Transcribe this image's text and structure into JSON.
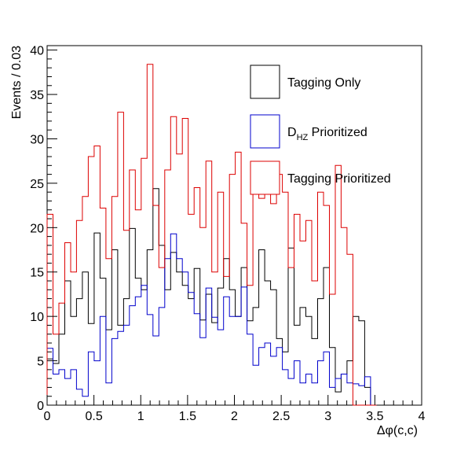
{
  "chart_data": {
    "type": "histogram-step",
    "xlabel": "Δφ(c,c)",
    "ylabel": "Events / 0.03",
    "xlim": [
      0,
      4
    ],
    "ylim": [
      0,
      40.5
    ],
    "bin_width": 0.0628,
    "x_ticks": [
      0,
      0.5,
      1,
      1.5,
      2,
      2.5,
      3,
      3.5,
      4
    ],
    "x_tick_labels": [
      "0",
      "0.5",
      "1",
      "1.5",
      "2",
      "2.5",
      "3",
      "3.5",
      "4"
    ],
    "y_ticks": [
      0,
      5,
      10,
      15,
      20,
      25,
      30,
      35,
      40
    ],
    "y_tick_labels": [
      "0",
      "5",
      "10",
      "15",
      "20",
      "25",
      "30",
      "35",
      "40"
    ],
    "legend_position": "top-right",
    "series": [
      {
        "name": "Tagging Only",
        "legend_main": "Tagging Only",
        "legend_sub": "",
        "legend_tail": "",
        "color": "#000000",
        "values": [
          5.2,
          4.7,
          8.0,
          14.0,
          10.0,
          12.0,
          15.0,
          9.2,
          19.4,
          14.3,
          8.5,
          17.5,
          9.0,
          12.0,
          19.9,
          14.3,
          13.0,
          17.5,
          24.4,
          18.0,
          13.0,
          17.2,
          15.0,
          13.5,
          12.0,
          15.4,
          9.6,
          12.5,
          9.3,
          13.2,
          16.5,
          13.0,
          10.0,
          15.5,
          9.5,
          11.0,
          17.5,
          14.0,
          13.0,
          7.5,
          6.0,
          17.7,
          9.0,
          11.0,
          10.0,
          7.5,
          12.0,
          15.5,
          6.5,
          1.5,
          3.5,
          5.0,
          10.0,
          9.5,
          2.0,
          0
        ]
      },
      {
        "name": "D_HZ Prioritized",
        "legend_main": "D",
        "legend_sub": "HZ",
        "legend_tail": " Prioritized",
        "color": "#0000cc",
        "values": [
          6.4,
          3.5,
          4.0,
          3.0,
          4.0,
          1.8,
          1.0,
          6.0,
          5.0,
          10.0,
          2.5,
          7.5,
          8.3,
          9.0,
          11.2,
          12.2,
          13.5,
          10.2,
          7.8,
          11.0,
          16.5,
          19.3,
          16.5,
          15.0,
          12.7,
          10.3,
          7.6,
          13.2,
          9.9,
          8.5,
          12.2,
          10.0,
          10.0,
          13.3,
          8.0,
          4.5,
          6.5,
          7.0,
          5.5,
          6.5,
          4.0,
          3.0,
          5.0,
          2.5,
          3.5,
          2.5,
          5.0,
          6.0,
          2.0,
          3.0,
          3.5,
          2.5,
          2.4,
          2.2,
          3.2,
          0
        ]
      },
      {
        "name": "Tagging Prioritized",
        "legend_main": "Tagging Prioritized",
        "legend_sub": "",
        "legend_tail": "",
        "color": "#dd0000",
        "values": [
          21.5,
          8.0,
          11.5,
          18.3,
          15.0,
          20.8,
          23.5,
          28.0,
          29.2,
          22.2,
          16.5,
          23.5,
          33.0,
          19.7,
          26.5,
          22.0,
          27.8,
          38.4,
          22.5,
          15.5,
          26.5,
          32.5,
          28.3,
          32.3,
          21.5,
          24.5,
          20.0,
          27.5,
          15.0,
          24.0,
          14.5,
          26.0,
          28.5,
          20.5,
          13.5,
          27.0,
          23.3,
          25.5,
          22.7,
          26.0,
          24.0,
          15.5,
          21.5,
          18.5,
          20.8,
          14.0,
          24.0,
          22.5,
          12.5,
          27.0,
          20.0,
          17.0,
          0,
          0,
          0,
          0
        ]
      }
    ]
  }
}
